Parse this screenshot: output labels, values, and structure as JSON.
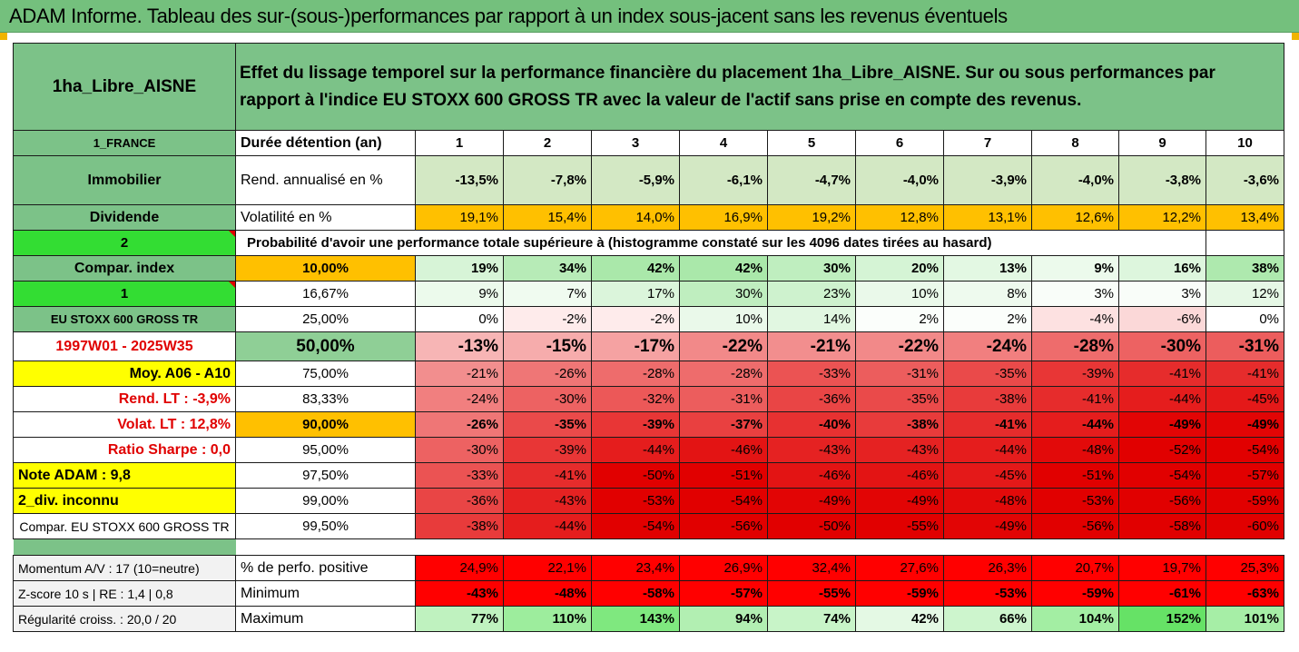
{
  "title": "ADAM Informe. Tableau des sur-(sous-)performances par rapport à un index sous-jacent sans les revenus éventuels",
  "header": {
    "fund": "1ha_Libre_AISNE",
    "description": "Effet du lissage temporel sur la performance financière du placement 1ha_Libre_AISNE. Sur ou sous performances par rapport à l'indice EU STOXX 600 GROSS TR avec la valeur de l'actif sans prise en compte des revenus."
  },
  "sidebar": {
    "country": "1_FRANCE",
    "category": "Immobilier",
    "subcategory": "Dividende",
    "n2": "2",
    "compar_index": "Compar. index",
    "n1": "1",
    "index_name": "EU STOXX 600 GROSS TR",
    "period": "1997W01 - 2025W35",
    "moy": "Moy. A06 - A10",
    "rend_lt": "Rend. LT :   -3,9%",
    "volat_lt": "Volat. LT :   12,8%",
    "sharpe": "Ratio Sharpe :   0,0",
    "note": "Note ADAM : 9,8",
    "div": "2_div. inconnu",
    "compar_full": "Compar. EU STOXX 600 GROSS TR",
    "momentum": "Momentum A/V : 17 (10=neutre)",
    "zscore": "Z-score 10 s  | RE : 1,4 | 0,8",
    "regularite": "Régularité croiss. : 20,0 / 20"
  },
  "labels": {
    "duree": "Durée détention (an)",
    "rend": "Rend. annualisé en %",
    "volat": "Volatilité en %",
    "proba": "Probabilité d'avoir une performance totale supérieure à (histogramme constaté sur les 4096 dates tirées au hasard)",
    "perf_pos": "% de perfo. positive",
    "minimum": "Minimum",
    "maximum": "Maximum"
  },
  "years": [
    "1",
    "2",
    "3",
    "4",
    "5",
    "6",
    "7",
    "8",
    "9",
    "10"
  ],
  "rend": [
    "-13,5%",
    "-7,8%",
    "-5,9%",
    "-6,1%",
    "-4,7%",
    "-4,0%",
    "-3,9%",
    "-4,0%",
    "-3,8%",
    "-3,6%"
  ],
  "volat": [
    "19,1%",
    "15,4%",
    "14,0%",
    "16,9%",
    "19,2%",
    "12,8%",
    "13,1%",
    "12,6%",
    "12,2%",
    "13,4%"
  ],
  "quantiles": [
    {
      "q": "10,00%",
      "vals": [
        "19%",
        "34%",
        "42%",
        "42%",
        "30%",
        "20%",
        "13%",
        "9%",
        "16%",
        "38%"
      ]
    },
    {
      "q": "16,67%",
      "vals": [
        "9%",
        "7%",
        "17%",
        "30%",
        "23%",
        "10%",
        "8%",
        "3%",
        "3%",
        "12%"
      ]
    },
    {
      "q": "25,00%",
      "vals": [
        "0%",
        "-2%",
        "-2%",
        "10%",
        "14%",
        "2%",
        "2%",
        "-4%",
        "-6%",
        "0%"
      ]
    },
    {
      "q": "50,00%",
      "vals": [
        "-13%",
        "-15%",
        "-17%",
        "-22%",
        "-21%",
        "-22%",
        "-24%",
        "-28%",
        "-30%",
        "-31%"
      ]
    },
    {
      "q": "75,00%",
      "vals": [
        "-21%",
        "-26%",
        "-28%",
        "-28%",
        "-33%",
        "-31%",
        "-35%",
        "-39%",
        "-41%",
        "-41%"
      ]
    },
    {
      "q": "83,33%",
      "vals": [
        "-24%",
        "-30%",
        "-32%",
        "-31%",
        "-36%",
        "-35%",
        "-38%",
        "-41%",
        "-44%",
        "-45%"
      ]
    },
    {
      "q": "90,00%",
      "vals": [
        "-26%",
        "-35%",
        "-39%",
        "-37%",
        "-40%",
        "-38%",
        "-41%",
        "-44%",
        "-49%",
        "-49%"
      ]
    },
    {
      "q": "95,00%",
      "vals": [
        "-30%",
        "-39%",
        "-44%",
        "-46%",
        "-43%",
        "-43%",
        "-44%",
        "-48%",
        "-52%",
        "-54%"
      ]
    },
    {
      "q": "97,50%",
      "vals": [
        "-33%",
        "-41%",
        "-50%",
        "-51%",
        "-46%",
        "-46%",
        "-45%",
        "-51%",
        "-54%",
        "-57%"
      ]
    },
    {
      "q": "99,00%",
      "vals": [
        "-36%",
        "-43%",
        "-53%",
        "-54%",
        "-49%",
        "-49%",
        "-48%",
        "-53%",
        "-56%",
        "-59%"
      ]
    },
    {
      "q": "99,50%",
      "vals": [
        "-38%",
        "-44%",
        "-54%",
        "-56%",
        "-50%",
        "-55%",
        "-49%",
        "-56%",
        "-58%",
        "-60%"
      ]
    }
  ],
  "perf_pos": [
    "24,9%",
    "22,1%",
    "23,4%",
    "26,9%",
    "32,4%",
    "27,6%",
    "26,3%",
    "20,7%",
    "19,7%",
    "25,3%"
  ],
  "minimum": [
    "-43%",
    "-48%",
    "-58%",
    "-57%",
    "-55%",
    "-59%",
    "-53%",
    "-59%",
    "-61%",
    "-63%"
  ],
  "maximum": [
    "77%",
    "110%",
    "143%",
    "94%",
    "74%",
    "42%",
    "66%",
    "104%",
    "152%",
    "101%"
  ],
  "colors": {
    "header_green": "#74c07d",
    "orange": "#ffc000",
    "yellow": "#ffff00",
    "bright_green": "#33dd33",
    "red_text": "#e00000"
  }
}
